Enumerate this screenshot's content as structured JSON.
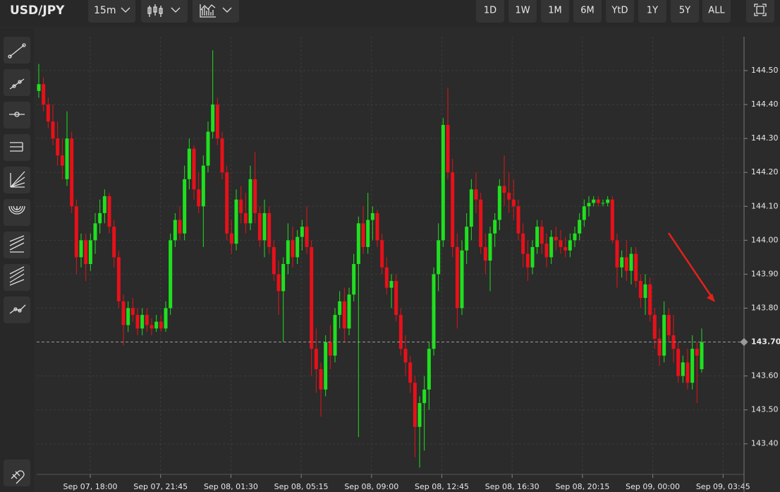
{
  "toolbar": {
    "symbol": "USD/JPY",
    "interval": "15m",
    "ranges": [
      "1D",
      "1W",
      "1M",
      "6M",
      "YtD",
      "1Y",
      "5Y",
      "ALL"
    ]
  },
  "chart_data": {
    "type": "candlestick",
    "up_color": "#1fe01f",
    "down_color": "#e8101a",
    "ylim": [
      143.31,
      144.6
    ],
    "yticks": [
      {
        "value": 143.4,
        "label": "143.40"
      },
      {
        "value": 143.5,
        "label": "143.50"
      },
      {
        "value": 143.6,
        "label": "143.60"
      },
      {
        "value": 143.8,
        "label": "143.80"
      },
      {
        "value": 143.9,
        "label": "143.90"
      },
      {
        "value": 144.0,
        "label": "144.00"
      },
      {
        "value": 144.1,
        "label": "144.10"
      },
      {
        "value": 144.2,
        "label": "144.20"
      },
      {
        "value": 144.3,
        "label": "144.30"
      },
      {
        "value": 144.4,
        "label": "144.40"
      },
      {
        "value": 144.5,
        "label": "144.50"
      }
    ],
    "last_price": {
      "value": 143.7,
      "label": "143.70"
    },
    "grid": true,
    "x_labels": [
      "Sep 07, 18:00",
      "Sep 07, 21:45",
      "Sep 08, 01:30",
      "Sep 08, 05:15",
      "Sep 08, 09:00",
      "Sep 08, 12:45",
      "Sep 08, 16:30",
      "Sep 08, 20:15",
      "Sep 09, 00:00",
      "Sep 09, 03:45"
    ],
    "series": [
      {
        "name": "USD/JPY",
        "values": [
          [
            144.44,
            144.52,
            144.42,
            144.46
          ],
          [
            144.46,
            144.48,
            144.38,
            144.4
          ],
          [
            144.4,
            144.42,
            144.33,
            144.35
          ],
          [
            144.35,
            144.4,
            144.28,
            144.3
          ],
          [
            144.3,
            144.35,
            144.22,
            144.25
          ],
          [
            144.25,
            144.3,
            144.18,
            144.22
          ],
          [
            144.18,
            144.38,
            144.16,
            144.3
          ],
          [
            144.3,
            144.32,
            144.08,
            144.1
          ],
          [
            144.1,
            144.12,
            143.9,
            143.95
          ],
          [
            143.95,
            144.02,
            143.92,
            144.0
          ],
          [
            144.0,
            144.02,
            143.88,
            143.93
          ],
          [
            143.93,
            144.02,
            143.91,
            144.0
          ],
          [
            144.0,
            144.08,
            143.96,
            144.05
          ],
          [
            144.05,
            144.12,
            144.02,
            144.08
          ],
          [
            144.08,
            144.15,
            144.05,
            144.13
          ],
          [
            144.13,
            144.14,
            144.02,
            144.04
          ],
          [
            144.04,
            144.06,
            143.92,
            143.95
          ],
          [
            143.95,
            143.97,
            143.8,
            143.82
          ],
          [
            143.82,
            143.84,
            143.69,
            143.75
          ],
          [
            143.75,
            143.82,
            143.73,
            143.8
          ],
          [
            143.8,
            143.83,
            143.76,
            143.78
          ],
          [
            143.78,
            143.8,
            143.72,
            143.74
          ],
          [
            143.74,
            143.8,
            143.72,
            143.78
          ],
          [
            143.78,
            143.8,
            143.73,
            143.75
          ],
          [
            143.75,
            143.77,
            143.72,
            143.74
          ],
          [
            143.74,
            143.78,
            143.73,
            143.76
          ],
          [
            143.76,
            143.78,
            143.73,
            143.74
          ],
          [
            143.74,
            143.82,
            143.73,
            143.8
          ],
          [
            143.8,
            144.02,
            143.78,
            144.0
          ],
          [
            144.0,
            144.08,
            143.98,
            144.06
          ],
          [
            144.06,
            144.1,
            144.0,
            144.02
          ],
          [
            144.02,
            144.22,
            144.0,
            144.18
          ],
          [
            144.18,
            144.3,
            144.15,
            144.27
          ],
          [
            144.27,
            144.28,
            144.12,
            144.15
          ],
          [
            144.15,
            144.2,
            144.08,
            144.1
          ],
          [
            144.1,
            144.25,
            143.98,
            144.22
          ],
          [
            144.22,
            144.35,
            144.2,
            144.32
          ],
          [
            144.32,
            144.56,
            144.3,
            144.4
          ],
          [
            144.4,
            144.42,
            144.28,
            144.3
          ],
          [
            144.3,
            144.32,
            144.18,
            144.2
          ],
          [
            144.2,
            144.22,
            144.0,
            144.02
          ],
          [
            144.02,
            144.06,
            143.96,
            143.99
          ],
          [
            143.99,
            144.15,
            143.97,
            144.12
          ],
          [
            144.12,
            144.16,
            144.05,
            144.08
          ],
          [
            144.08,
            144.14,
            144.02,
            144.05
          ],
          [
            144.05,
            144.22,
            144.03,
            144.18
          ],
          [
            144.18,
            144.26,
            144.05,
            144.08
          ],
          [
            144.08,
            144.1,
            143.98,
            144.0
          ],
          [
            144.0,
            144.12,
            143.95,
            144.08
          ],
          [
            144.08,
            144.1,
            143.96,
            143.98
          ],
          [
            143.98,
            144.0,
            143.88,
            143.9
          ],
          [
            143.9,
            143.94,
            143.78,
            143.85
          ],
          [
            143.85,
            143.95,
            143.7,
            143.93
          ],
          [
            143.93,
            144.05,
            143.9,
            144.0
          ],
          [
            144.0,
            144.04,
            143.92,
            143.95
          ],
          [
            143.95,
            144.03,
            143.93,
            144.01
          ],
          [
            144.01,
            144.06,
            143.97,
            144.04
          ],
          [
            144.04,
            144.1,
            143.96,
            143.98
          ],
          [
            143.98,
            144.0,
            143.6,
            143.68
          ],
          [
            143.68,
            143.74,
            143.55,
            143.62
          ],
          [
            143.62,
            143.64,
            143.48,
            143.56
          ],
          [
            143.56,
            143.72,
            143.54,
            143.7
          ],
          [
            143.7,
            143.75,
            143.62,
            143.66
          ],
          [
            143.66,
            143.8,
            143.64,
            143.78
          ],
          [
            143.78,
            143.85,
            143.74,
            143.82
          ],
          [
            143.82,
            143.86,
            143.7,
            143.74
          ],
          [
            143.74,
            143.86,
            143.72,
            143.84
          ],
          [
            143.84,
            143.96,
            143.82,
            143.93
          ],
          [
            143.93,
            144.07,
            143.42,
            144.05
          ],
          [
            144.05,
            144.1,
            143.96,
            143.98
          ],
          [
            143.98,
            144.14,
            143.96,
            144.06
          ],
          [
            144.06,
            144.1,
            144.0,
            144.08
          ],
          [
            144.08,
            144.09,
            143.98,
            144.0
          ],
          [
            144.0,
            144.02,
            143.9,
            143.92
          ],
          [
            143.92,
            143.95,
            143.84,
            143.86
          ],
          [
            143.86,
            143.9,
            143.8,
            143.88
          ],
          [
            143.88,
            143.9,
            143.76,
            143.78
          ],
          [
            143.78,
            143.8,
            143.66,
            143.68
          ],
          [
            143.68,
            143.72,
            143.6,
            143.64
          ],
          [
            143.64,
            143.66,
            143.55,
            143.58
          ],
          [
            143.58,
            143.6,
            143.36,
            143.45
          ],
          [
            143.45,
            143.54,
            143.33,
            143.52
          ],
          [
            143.52,
            143.6,
            143.38,
            143.56
          ],
          [
            143.56,
            143.7,
            143.5,
            143.68
          ],
          [
            143.68,
            143.92,
            143.66,
            143.9
          ],
          [
            143.9,
            144.05,
            143.85,
            144.0
          ],
          [
            144.0,
            144.36,
            143.98,
            144.34
          ],
          [
            144.34,
            144.45,
            144.18,
            144.2
          ],
          [
            144.2,
            144.24,
            143.95,
            143.98
          ],
          [
            143.98,
            144.02,
            143.74,
            143.8
          ],
          [
            143.8,
            144.0,
            143.78,
            143.97
          ],
          [
            143.97,
            144.08,
            143.93,
            144.04
          ],
          [
            144.04,
            144.18,
            144.0,
            144.15
          ],
          [
            144.15,
            144.2,
            144.08,
            144.12
          ],
          [
            144.12,
            144.14,
            143.96,
            143.98
          ],
          [
            143.98,
            144.02,
            143.9,
            143.94
          ],
          [
            143.94,
            144.04,
            143.85,
            144.02
          ],
          [
            144.02,
            144.08,
            143.98,
            144.06
          ],
          [
            144.06,
            144.18,
            144.03,
            144.16
          ],
          [
            144.16,
            144.25,
            144.1,
            144.14
          ],
          [
            144.14,
            144.2,
            144.08,
            144.12
          ],
          [
            144.12,
            144.18,
            144.06,
            144.1
          ],
          [
            144.1,
            144.12,
            144.0,
            144.02
          ],
          [
            144.02,
            144.05,
            143.92,
            143.96
          ],
          [
            143.96,
            144.0,
            143.88,
            143.92
          ],
          [
            143.92,
            144.0,
            143.9,
            143.98
          ],
          [
            143.98,
            144.06,
            143.96,
            144.04
          ],
          [
            144.04,
            144.06,
            143.96,
            143.99
          ],
          [
            143.99,
            144.02,
            143.92,
            143.95
          ],
          [
            143.95,
            144.03,
            143.93,
            144.01
          ],
          [
            144.01,
            144.04,
            143.97,
            144.0
          ],
          [
            144.0,
            144.03,
            143.96,
            143.98
          ],
          [
            143.98,
            144.01,
            143.95,
            143.97
          ],
          [
            143.97,
            144.02,
            143.95,
            144.0
          ],
          [
            144.0,
            144.04,
            143.98,
            144.02
          ],
          [
            144.02,
            144.08,
            144.0,
            144.06
          ],
          [
            144.06,
            144.12,
            144.04,
            144.1
          ],
          [
            144.1,
            144.13,
            144.07,
            144.11
          ],
          [
            144.11,
            144.13,
            144.1,
            144.12
          ],
          [
            144.12,
            144.13,
            144.1,
            144.11
          ],
          [
            144.11,
            144.12,
            144.1,
            144.11
          ],
          [
            144.11,
            144.13,
            144.1,
            144.12
          ],
          [
            144.12,
            144.13,
            143.99,
            144.0
          ],
          [
            144.0,
            144.02,
            143.86,
            143.92
          ],
          [
            143.92,
            143.97,
            143.89,
            143.95
          ],
          [
            143.95,
            144.0,
            143.88,
            143.91
          ],
          [
            143.91,
            143.98,
            143.87,
            143.96
          ],
          [
            143.96,
            143.98,
            143.86,
            143.88
          ],
          [
            143.88,
            143.9,
            143.8,
            143.83
          ],
          [
            143.83,
            143.9,
            143.78,
            143.87
          ],
          [
            143.87,
            143.89,
            143.76,
            143.78
          ],
          [
            143.78,
            143.8,
            143.68,
            143.71
          ],
          [
            143.71,
            143.74,
            143.63,
            143.66
          ],
          [
            143.66,
            143.82,
            143.64,
            143.78
          ],
          [
            143.78,
            143.8,
            143.7,
            143.72
          ],
          [
            143.72,
            143.78,
            143.64,
            143.68
          ],
          [
            143.68,
            143.7,
            143.58,
            143.6
          ],
          [
            143.6,
            143.66,
            143.58,
            143.64
          ],
          [
            143.64,
            143.68,
            143.56,
            143.58
          ],
          [
            143.58,
            143.72,
            143.56,
            143.68
          ],
          [
            143.68,
            143.7,
            143.52,
            143.66
          ],
          [
            143.62,
            143.74,
            143.61,
            143.7
          ]
        ]
      }
    ]
  }
}
